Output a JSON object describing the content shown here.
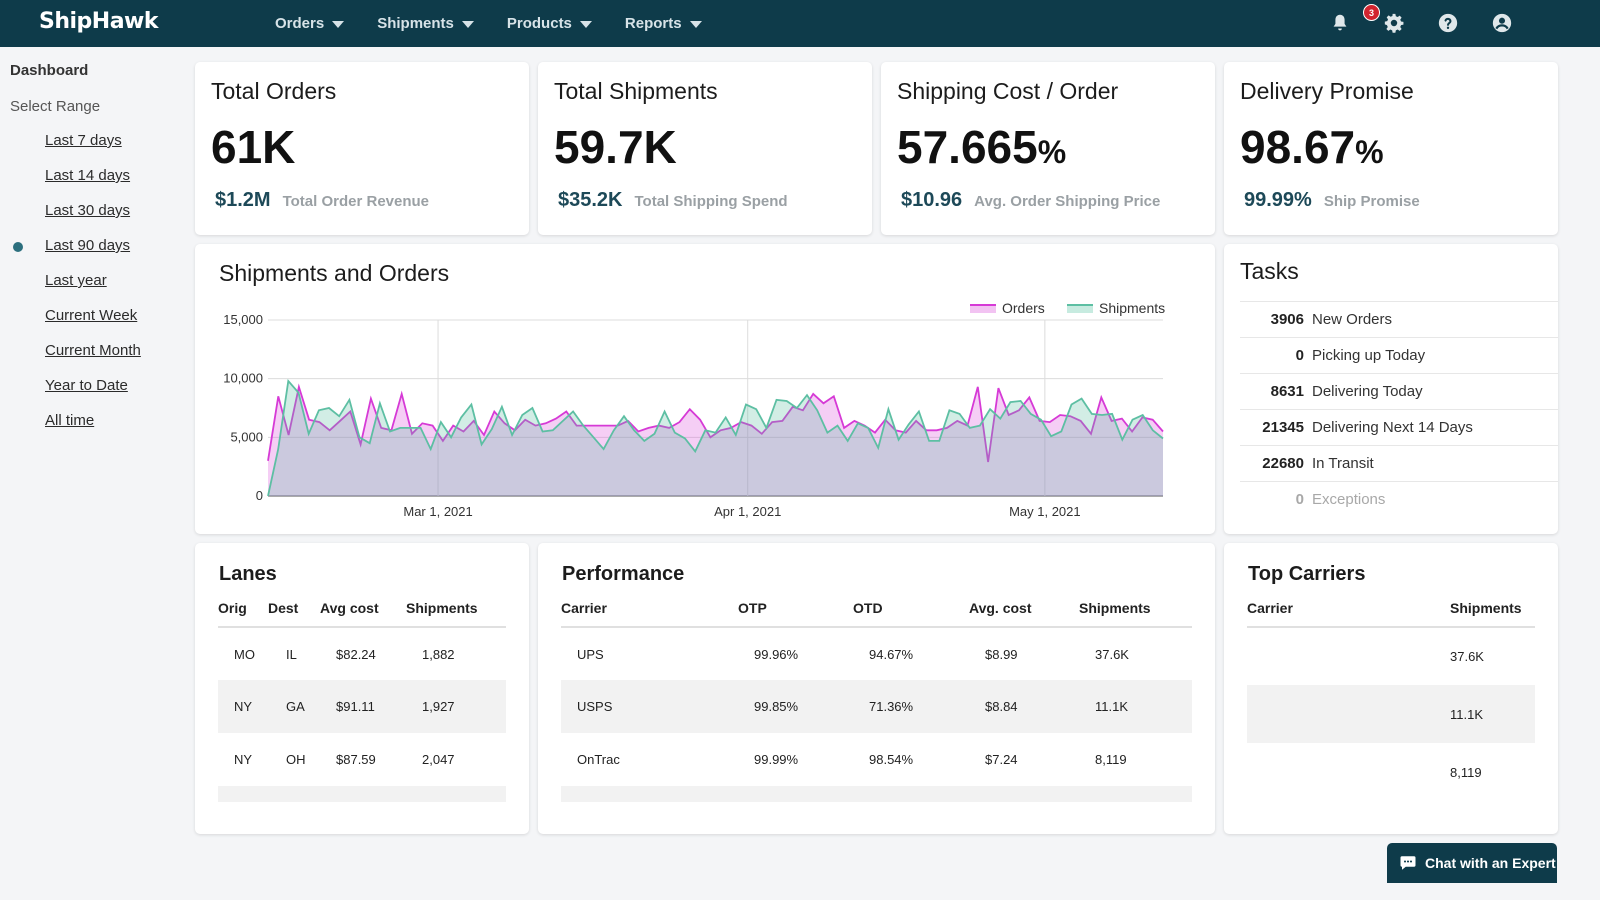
{
  "brand": {
    "logo": "ShipHawk"
  },
  "nav": {
    "items": [
      "Orders",
      "Shipments",
      "Products",
      "Reports"
    ]
  },
  "header_icons": {
    "notifications_count": "3",
    "icons": [
      "bell-icon",
      "gear-icon",
      "help-icon",
      "user-icon"
    ]
  },
  "sidebar": {
    "title": "Dashboard",
    "subtitle": "Select Range",
    "ranges": [
      "Last 7 days",
      "Last 14 days",
      "Last 30 days",
      "Last 90 days",
      "Last year",
      "Current Week",
      "Current Month",
      "Year to Date",
      "All time"
    ],
    "selected": "Last 90 days"
  },
  "kpis": [
    {
      "title": "Total Orders",
      "value": "61K",
      "unit": "",
      "sub_value": "$1.2M",
      "sub_label": "Total Order Revenue"
    },
    {
      "title": "Total Shipments",
      "value": "59.7K",
      "unit": "",
      "sub_value": "$35.2K",
      "sub_label": "Total Shipping Spend"
    },
    {
      "title": "Shipping Cost / Order",
      "value": "57.665",
      "unit": "%",
      "sub_value": "$10.96",
      "sub_label": "Avg. Order Shipping Price"
    },
    {
      "title": "Delivery Promise",
      "value": "98.67",
      "unit": "%",
      "sub_value": "99.99%",
      "sub_label": "Ship Promise"
    }
  ],
  "chart_title": "Shipments and Orders",
  "chart_data": {
    "type": "area",
    "title": "Shipments and Orders",
    "xlabel": "",
    "ylabel": "",
    "ylim": [
      0,
      15000
    ],
    "yticks": [
      "15,000",
      "10,000",
      "5,000",
      "0"
    ],
    "xticks": [
      "Mar 1, 2021",
      "Apr 1, 2021",
      "May 1, 2021"
    ],
    "legend_position": "top-right",
    "grid": true,
    "colors": {
      "Orders": "#d63ad6",
      "Shipments": "#5dbfa3"
    },
    "series": [
      {
        "name": "Orders",
        "values": [
          3000,
          8500,
          5200,
          9300,
          6500,
          6300,
          5600,
          6400,
          7200,
          4400,
          8300,
          5800,
          5600,
          8700,
          5300,
          6200,
          6000,
          4700,
          6000,
          5500,
          6400,
          5200,
          7200,
          6200,
          5600,
          6500,
          6000,
          6200,
          6600,
          7200,
          6000,
          6000,
          6000,
          6000,
          6000,
          6400,
          5500,
          5800,
          6000,
          5800,
          6300,
          7400,
          6500,
          5000,
          5600,
          5800,
          6300,
          6000,
          5300,
          6300,
          6400,
          7600,
          7300,
          8700,
          7900,
          8500,
          5800,
          6400,
          6000,
          5400,
          6500,
          5600,
          5400,
          6400,
          5600,
          5600,
          5800,
          6400,
          6000,
          9300,
          2900,
          9200,
          6900,
          7300,
          8400,
          6400,
          6300,
          6900,
          6800,
          6400,
          5300,
          8400,
          6400,
          6600,
          5500,
          6700,
          6500,
          5500
        ]
      },
      {
        "name": "Shipments",
        "values": [
          0,
          4000,
          9800,
          8800,
          5300,
          7300,
          7500,
          6800,
          8200,
          5000,
          4500,
          7900,
          5500,
          5800,
          5800,
          5800,
          4000,
          6300,
          5000,
          6700,
          7800,
          4400,
          5700,
          7600,
          5200,
          6900,
          7500,
          5500,
          5600,
          6400,
          7200,
          6000,
          5000,
          4000,
          5600,
          6800,
          5600,
          4700,
          5300,
          7200,
          5400,
          4900,
          3800,
          5600,
          5400,
          6700,
          5200,
          7800,
          7400,
          5800,
          8200,
          8100,
          7500,
          8600,
          7300,
          5400,
          6000,
          4700,
          6200,
          5800,
          4100,
          7400,
          4800,
          6100,
          7200,
          4700,
          4700,
          7300,
          7000,
          5800,
          6000,
          7400,
          6600,
          8000,
          8100,
          7000,
          6500,
          5100,
          5500,
          7800,
          8300,
          7000,
          6900,
          7000,
          4800,
          6500,
          6900,
          5600,
          4900
        ]
      }
    ]
  },
  "tasks": {
    "title": "Tasks",
    "items": [
      {
        "count": "3906",
        "label": "New Orders"
      },
      {
        "count": "0",
        "label": "Picking up Today"
      },
      {
        "count": "8631",
        "label": "Delivering Today"
      },
      {
        "count": "21345",
        "label": "Delivering Next 14 Days"
      },
      {
        "count": "22680",
        "label": "In Transit"
      },
      {
        "count": "0",
        "label": "Exceptions"
      }
    ]
  },
  "lanes": {
    "title": "Lanes",
    "headers": [
      "Orig",
      "Dest",
      "Avg cost",
      "Shipments"
    ],
    "rows": [
      [
        "MO",
        "IL",
        "$82.24",
        "1,882"
      ],
      [
        "NY",
        "GA",
        "$91.11",
        "1,927"
      ],
      [
        "NY",
        "OH",
        "$87.59",
        "2,047"
      ]
    ]
  },
  "performance": {
    "title": "Performance",
    "headers": [
      "Carrier",
      "OTP",
      "OTD",
      "Avg. cost",
      "Shipments"
    ],
    "rows": [
      [
        "UPS",
        "99.96%",
        "94.67%",
        "$8.99",
        "37.6K"
      ],
      [
        "USPS",
        "99.85%",
        "71.36%",
        "$8.84",
        "11.1K"
      ],
      [
        "OnTrac",
        "99.99%",
        "98.54%",
        "$7.24",
        "8,119"
      ]
    ]
  },
  "top_carriers": {
    "title": "Top Carriers",
    "headers": [
      "Carrier",
      "Shipments"
    ],
    "rows": [
      [
        "",
        "37.6K"
      ],
      [
        "",
        "11.1K"
      ],
      [
        "",
        "8,119"
      ]
    ]
  },
  "chat": {
    "label": "Chat with an Expert"
  }
}
